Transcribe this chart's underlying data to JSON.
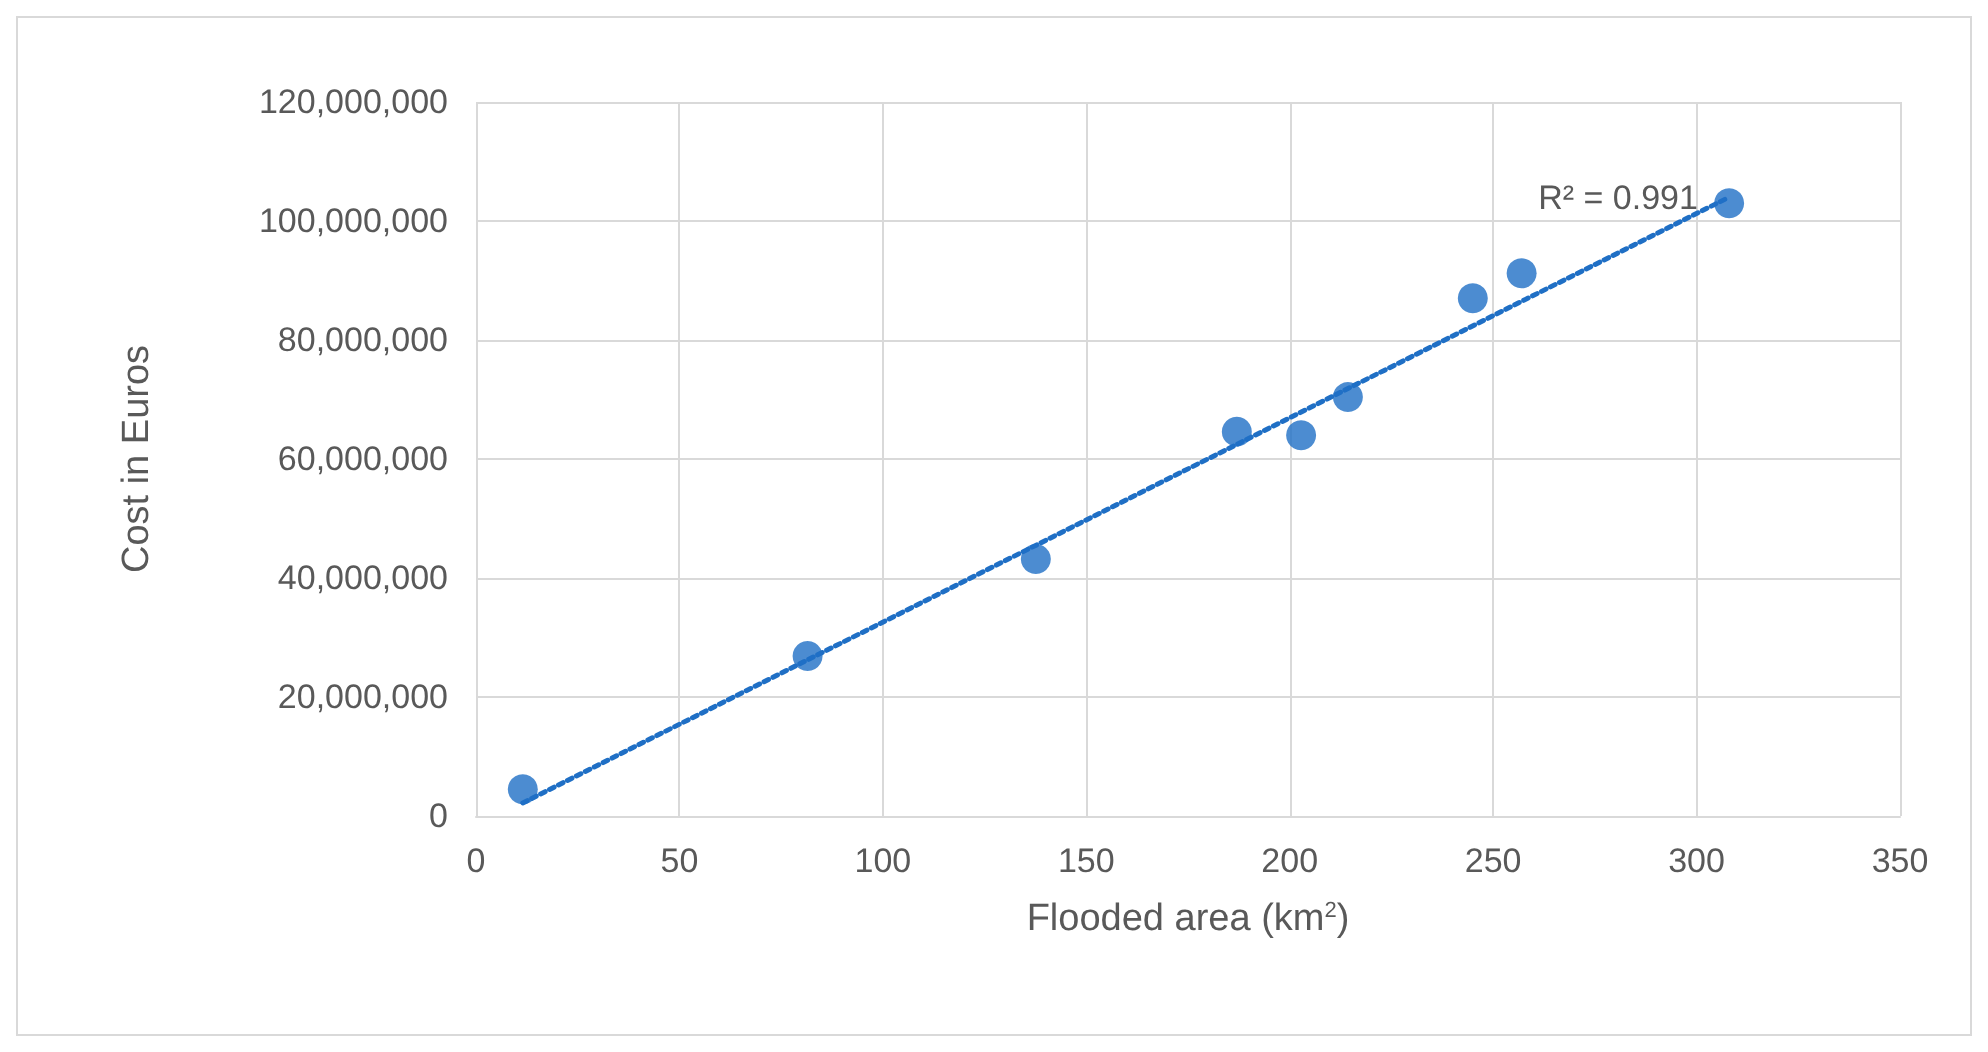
{
  "chart_data": {
    "type": "scatter",
    "xlabel": "Flooded area (km$^{2}$)",
    "ylabel": "Cost in Euros",
    "x": [
      11.5,
      81.5,
      137.6,
      187,
      202.8,
      214.3,
      245,
      257,
      308
    ],
    "series": [
      {
        "color": "#1f6fc5",
        "marker": "circle",
        "values": [
          4500000,
          26900000,
          43200000,
          64600000,
          64000000,
          70400000,
          87000000,
          91200000,
          103000000
        ]
      },
      {
        "type": "line",
        "color": "#1f6fc5",
        "line_style": "dotted",
        "marker": "none",
        "x": [
          11.5,
          308
        ],
        "values": [
          2200000,
          104000000
        ]
      }
    ],
    "annotations": [
      "R² = 0.991"
    ],
    "xlim": [
      0,
      350
    ],
    "xticks": [
      0,
      50,
      100,
      150,
      200,
      250,
      300,
      350
    ],
    "ylim": [
      0,
      120000000
    ],
    "yticks": [
      0,
      {
        "value": 20000000,
        "label": "20,000,000"
      },
      {
        "value": 40000000,
        "label": "40,000,000"
      },
      {
        "value": 60000000,
        "label": "60,000,000"
      },
      {
        "value": 80000000,
        "label": "80,000,000"
      },
      {
        "value": 100000000,
        "label": "100,000,000"
      },
      {
        "value": 120000000,
        "label": "120,000,000"
      }
    ],
    "grid": true
  }
}
